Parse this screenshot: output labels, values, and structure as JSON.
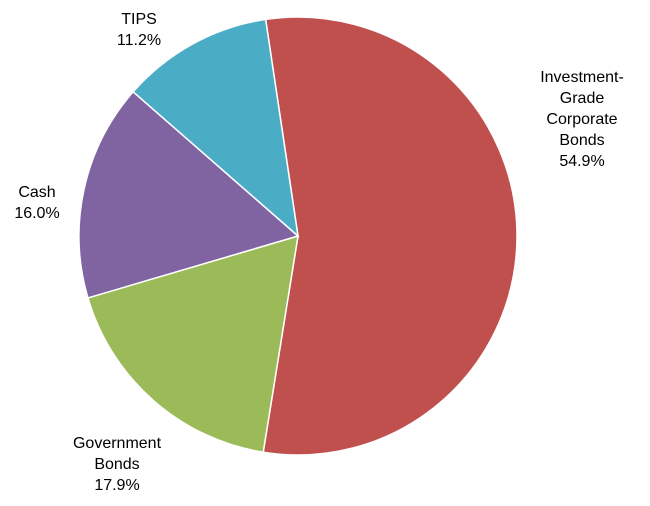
{
  "chart_data": {
    "type": "pie",
    "title": "",
    "slices": [
      {
        "name": "Investment-Grade Corporate Bonds",
        "label_lines": [
          "Investment-",
          "Grade",
          "Corporate",
          "Bonds"
        ],
        "value": 54.9,
        "value_label": "54.9%",
        "color": "#C0504D"
      },
      {
        "name": "Government Bonds",
        "label_lines": [
          "Government",
          "Bonds"
        ],
        "value": 17.9,
        "value_label": "17.9%",
        "color": "#9BBB59"
      },
      {
        "name": "Cash",
        "label_lines": [
          "Cash"
        ],
        "value": 16.0,
        "value_label": "16.0%",
        "color": "#8064A2"
      },
      {
        "name": "TIPS",
        "label_lines": [
          "TIPS"
        ],
        "value": 11.2,
        "value_label": "11.2%",
        "color": "#4BACC6"
      }
    ],
    "legend": "none",
    "start_angle_deg": -8.5,
    "direction": "clockwise"
  }
}
